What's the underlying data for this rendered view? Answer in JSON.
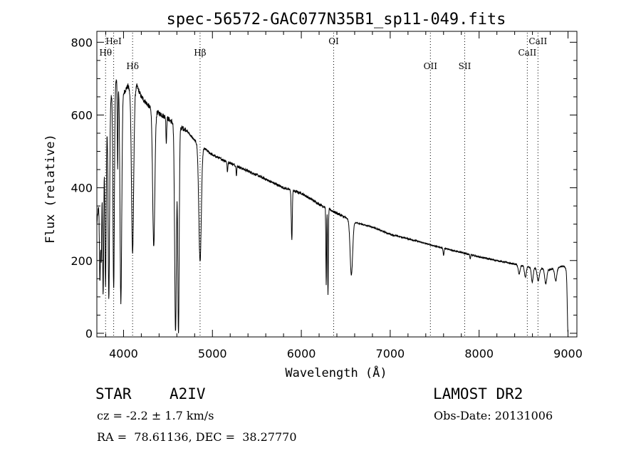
{
  "chart_data": {
    "type": "line",
    "title": "spec-56572-GAC077N35B1_sp11-049.fits",
    "xlabel": "Wavelength (Å)",
    "ylabel": "Flux (relative)",
    "xlim": [
      3700,
      9100
    ],
    "ylim": [
      -10,
      830
    ],
    "xticks": [
      4000,
      5000,
      6000,
      7000,
      8000,
      9000
    ],
    "yticks": [
      0,
      200,
      400,
      600,
      800
    ],
    "grid": false,
    "line_color": "#000000",
    "line_markers": [
      {
        "label": "Hθ",
        "x": 3798,
        "label_tier": "low"
      },
      {
        "label": "HeI",
        "x": 3889,
        "label_tier": "high"
      },
      {
        "label": "Hδ",
        "x": 4102,
        "label_tier": "mid"
      },
      {
        "label": "Hβ",
        "x": 4861,
        "label_tier": "low"
      },
      {
        "label": "OI",
        "x": 6364,
        "label_tier": "high"
      },
      {
        "label": "OII",
        "x": 7452,
        "label_tier": "mid"
      },
      {
        "label": "SII",
        "x": 7838,
        "label_tier": "mid"
      },
      {
        "label": "CaII",
        "x": 8542,
        "label_tier": "low"
      },
      {
        "label": "CaII",
        "x": 8662,
        "label_tier": "high"
      }
    ],
    "continuum": [
      [
        3700,
        300
      ],
      [
        3750,
        430
      ],
      [
        3800,
        560
      ],
      [
        3850,
        640
      ],
      [
        3900,
        690
      ],
      [
        3950,
        700
      ],
      [
        4000,
        660
      ],
      [
        4050,
        680
      ],
      [
        4100,
        650
      ],
      [
        4150,
        680
      ],
      [
        4200,
        650
      ],
      [
        4300,
        620
      ],
      [
        4400,
        605
      ],
      [
        4500,
        590
      ],
      [
        4600,
        570
      ],
      [
        4700,
        560
      ],
      [
        4800,
        530
      ],
      [
        4900,
        510
      ],
      [
        5000,
        490
      ],
      [
        5200,
        468
      ],
      [
        5500,
        435
      ],
      [
        5800,
        400
      ],
      [
        6000,
        385
      ],
      [
        6200,
        355
      ],
      [
        6400,
        330
      ],
      [
        6600,
        305
      ],
      [
        6800,
        292
      ],
      [
        7000,
        272
      ],
      [
        7200,
        260
      ],
      [
        7500,
        240
      ],
      [
        7800,
        222
      ],
      [
        8000,
        210
      ],
      [
        8200,
        200
      ],
      [
        8400,
        190
      ],
      [
        8600,
        180
      ],
      [
        8800,
        175
      ],
      [
        8950,
        185
      ],
      [
        9000,
        170
      ]
    ],
    "absorption_lines": [
      {
        "x": 3735,
        "depth": 250,
        "width": 6
      },
      {
        "x": 3750,
        "depth": 220,
        "width": 5
      },
      {
        "x": 3771,
        "depth": 380,
        "width": 6
      },
      {
        "x": 3798,
        "depth": 420,
        "width": 7
      },
      {
        "x": 3835,
        "depth": 520,
        "width": 8
      },
      {
        "x": 3889,
        "depth": 560,
        "width": 8
      },
      {
        "x": 3934,
        "depth": 250,
        "width": 4
      },
      {
        "x": 3970,
        "depth": 600,
        "width": 10
      },
      {
        "x": 4102,
        "depth": 430,
        "width": 12
      },
      {
        "x": 4340,
        "depth": 380,
        "width": 12
      },
      {
        "x": 4481,
        "depth": 70,
        "width": 4
      },
      {
        "x": 4585,
        "depth": 570,
        "width": 10
      },
      {
        "x": 4618,
        "depth": 570,
        "width": 8
      },
      {
        "x": 4861,
        "depth": 320,
        "width": 14
      },
      {
        "x": 5169,
        "depth": 30,
        "width": 4
      },
      {
        "x": 5270,
        "depth": 25,
        "width": 4
      },
      {
        "x": 5890,
        "depth": 90,
        "width": 5
      },
      {
        "x": 5896,
        "depth": 80,
        "width": 4
      },
      {
        "x": 6280,
        "depth": 210,
        "width": 4
      },
      {
        "x": 6300,
        "depth": 240,
        "width": 4
      },
      {
        "x": 6563,
        "depth": 150,
        "width": 14
      },
      {
        "x": 7600,
        "depth": 20,
        "width": 5
      },
      {
        "x": 7900,
        "depth": 12,
        "width": 4
      },
      {
        "x": 8450,
        "depth": 25,
        "width": 10
      },
      {
        "x": 8520,
        "depth": 30,
        "width": 10
      },
      {
        "x": 8598,
        "depth": 40,
        "width": 10
      },
      {
        "x": 8665,
        "depth": 35,
        "width": 12
      },
      {
        "x": 8750,
        "depth": 40,
        "width": 12
      },
      {
        "x": 8862,
        "depth": 35,
        "width": 12
      },
      {
        "x": 9000,
        "depth": 170,
        "width": 8
      }
    ]
  },
  "info": {
    "class_label": "STAR",
    "subclass": "A2IV",
    "survey": "LAMOST DR2",
    "redshift": "cz = -2.2 ± 1.7 km/s",
    "obs_date": "Obs-Date: 20131006",
    "coords": "RA =  78.61136, DEC =  38.27770"
  }
}
